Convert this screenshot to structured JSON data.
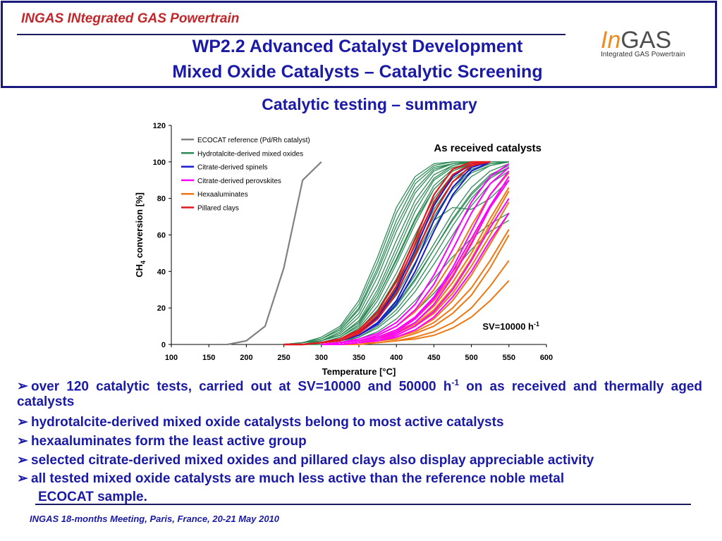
{
  "header": {
    "tag": "INGAS INtegrated GAS Powertrain",
    "title_line1": "WP2.2 Advanced Catalyst Development",
    "title_line2": "Mixed Oxide Catalysts – Catalytic Screening",
    "logo_in": "In",
    "logo_gas": "GAS",
    "logo_sub": "Integrated GAS Powertrain"
  },
  "subtitle": "Catalytic testing – summary",
  "bullets": [
    "over 120 catalytic tests, carried out at SV=10000 and 50000 h",
    "hydrotalcite-derived mixed oxide catalysts belong to most active catalysts",
    "hexaaluminates form the least active group",
    "selected citrate-derived mixed oxides and pillared clays also display appreciable activity",
    "all tested mixed oxide catalysts are much less active than the reference noble metal",
    "ECOCAT sample."
  ],
  "bullet1_sup": "-1",
  "bullet1_tail": " on as received and thermally aged catalysts",
  "footer": "INGAS 18-months Meeting, Paris, France, 20-21 May 2010",
  "colors": {
    "title_blue": "#1a1aa6",
    "header_red": "#c0282c",
    "ecocat": "#808080",
    "hydrotalcite": "#2e8b57",
    "spinels": "#1a1acd",
    "perovskites": "#ff00ff",
    "hexaaluminates": "#f07814",
    "pillared": "#e0191e"
  },
  "chart_data": {
    "type": "line",
    "xlabel": "Temperature [°C]",
    "ylabel_main": "CH",
    "ylabel_sub": "4",
    "ylabel_tail": " conversion [%]",
    "xlim": [
      100,
      600
    ],
    "ylim": [
      0,
      120
    ],
    "xticks": [
      "100",
      "150",
      "200",
      "250",
      "300",
      "350",
      "400",
      "450",
      "500",
      "550",
      "600"
    ],
    "yticks": [
      "0",
      "20",
      "40",
      "60",
      "80",
      "100",
      "120"
    ],
    "annotation": "As received catalysts",
    "sv_label": "SV=10000 h",
    "sv_sup": "-1",
    "legend": [
      {
        "name": "ECOCAT reference (Pd/Rh catalyst)",
        "color": "#808080"
      },
      {
        "name": "Hydrotalcite-derived mixed oxides",
        "color": "#2e8b57"
      },
      {
        "name": "Citrate-derived spinels",
        "color": "#1a1acd"
      },
      {
        "name": "Citrate-derived perovskites",
        "color": "#ff00ff"
      },
      {
        "name": "Hexaaluminates",
        "color": "#f07814"
      },
      {
        "name": "Pillared clays",
        "color": "#e0191e"
      }
    ],
    "series": [
      {
        "name": "ECOCAT reference (Pd/Rh catalyst)",
        "color": "#808080",
        "width": 2.2,
        "x": [
          175,
          200,
          225,
          250,
          275,
          300
        ],
        "y": [
          0,
          2,
          10,
          42,
          90,
          100
        ]
      },
      {
        "group": "Hydrotalcite-derived mixed oxides",
        "color": "#2e8b57",
        "width": 1.3,
        "x": [
          250,
          275,
          300,
          325,
          350,
          375,
          400,
          425,
          450,
          475,
          500,
          525,
          550
        ],
        "ys": [
          [
            0,
            1,
            3,
            9,
            22,
            45,
            72,
            90,
            98,
            100,
            100,
            100,
            100
          ],
          [
            0,
            1,
            3,
            8,
            20,
            42,
            68,
            88,
            97,
            99,
            100,
            100,
            100
          ],
          [
            0,
            1,
            4,
            10,
            24,
            48,
            75,
            92,
            99,
            100,
            100,
            100,
            100
          ],
          [
            0,
            1,
            2,
            7,
            17,
            37,
            62,
            83,
            95,
            99,
            100,
            100,
            100
          ],
          [
            0,
            1,
            2,
            6,
            15,
            33,
            57,
            79,
            93,
            98,
            100,
            100,
            100
          ],
          [
            0,
            1,
            3,
            8,
            19,
            40,
            65,
            85,
            96,
            99,
            100,
            100,
            100
          ],
          [
            0,
            0,
            2,
            5,
            12,
            28,
            50,
            73,
            90,
            97,
            99,
            100,
            100
          ],
          [
            0,
            0,
            2,
            5,
            13,
            30,
            53,
            76,
            91,
            98,
            100,
            100,
            100
          ],
          [
            0,
            0,
            1,
            4,
            10,
            24,
            44,
            66,
            85,
            95,
            99,
            100,
            100
          ],
          [
            0,
            0,
            1,
            4,
            11,
            26,
            47,
            69,
            87,
            96,
            99,
            100,
            100
          ],
          [
            0,
            0,
            1,
            3,
            9,
            21,
            39,
            60,
            80,
            93,
            98,
            100,
            100
          ],
          [
            0,
            0,
            1,
            3,
            8,
            18,
            34,
            54,
            74,
            89,
            96,
            99,
            100
          ],
          [
            0,
            0,
            1,
            3,
            8,
            19,
            36,
            57,
            77,
            91,
            97,
            100,
            100
          ],
          [
            0,
            0,
            1,
            2,
            6,
            14,
            27,
            45,
            64,
            81,
            92,
            98,
            100
          ],
          [
            0,
            0,
            1,
            2,
            5,
            12,
            23,
            38,
            55,
            72,
            86,
            95,
            99
          ],
          [
            0,
            0,
            1,
            3,
            7,
            16,
            31,
            50,
            70,
            86,
            95,
            99,
            100
          ],
          [
            0,
            0,
            1,
            2,
            4,
            10,
            19,
            32,
            48,
            65,
            80,
            91,
            97
          ],
          [
            0,
            0,
            1,
            2,
            5,
            11,
            21,
            35,
            52,
            69,
            83,
            93,
            98
          ],
          [
            0,
            0,
            0,
            1,
            4,
            9,
            17,
            29,
            44,
            60,
            76,
            88,
            95
          ],
          [
            0,
            0,
            1,
            2,
            6,
            15,
            29,
            48,
            68,
            75,
            74,
            80,
            90
          ],
          [
            0,
            0,
            0,
            1,
            3,
            7,
            14,
            24,
            36,
            48,
            58,
            66,
            72
          ],
          [
            0,
            0,
            0,
            1,
            2,
            5,
            10,
            18,
            28,
            40,
            52,
            62,
            68
          ],
          [
            0,
            0,
            1,
            2,
            5,
            12,
            22,
            36,
            52,
            68,
            82,
            92,
            97
          ],
          [
            0,
            0,
            1,
            3,
            8,
            17,
            32,
            51,
            70,
            85,
            94,
            98,
            100
          ],
          [
            0,
            1,
            2,
            5,
            12,
            26,
            46,
            68,
            85,
            95,
            99,
            100,
            100
          ]
        ]
      },
      {
        "group": "Citrate-derived spinels",
        "color": "#1a1acd",
        "width": 2,
        "x": [
          250,
          275,
          300,
          325,
          350,
          375,
          400,
          425,
          450,
          475,
          500,
          525
        ],
        "ys": [
          [
            0,
            0,
            1,
            3,
            7,
            15,
            30,
            52,
            76,
            92,
            99,
            100
          ],
          [
            0,
            0,
            1,
            2,
            5,
            11,
            22,
            40,
            62,
            82,
            95,
            100
          ],
          [
            0,
            0,
            1,
            2,
            5,
            12,
            24,
            44,
            68,
            86,
            97,
            100
          ]
        ]
      },
      {
        "group": "Citrate-derived perovskites",
        "color": "#ff00ff",
        "width": 2,
        "x": [
          300,
          325,
          350,
          375,
          400,
          425,
          450,
          475,
          500,
          525,
          550
        ],
        "ys": [
          [
            0,
            1,
            2,
            4,
            8,
            15,
            26,
            42,
            62,
            82,
            95
          ],
          [
            0,
            1,
            2,
            5,
            10,
            19,
            33,
            52,
            72,
            88,
            97
          ],
          [
            0,
            0,
            1,
            3,
            6,
            12,
            22,
            37,
            55,
            75,
            90
          ],
          [
            0,
            0,
            1,
            3,
            7,
            14,
            25,
            40,
            58,
            76,
            92
          ],
          [
            0,
            0,
            1,
            2,
            5,
            10,
            18,
            30,
            46,
            64,
            80
          ],
          [
            0,
            0,
            1,
            2,
            4,
            8,
            15,
            26,
            40,
            57,
            72
          ],
          [
            0,
            1,
            3,
            6,
            12,
            22,
            38,
            58,
            78,
            92,
            99
          ]
        ]
      },
      {
        "group": "Hexaaluminates",
        "color": "#f07814",
        "width": 2,
        "x": [
          300,
          325,
          350,
          375,
          400,
          425,
          450,
          475,
          500,
          525,
          550
        ],
        "ys": [
          [
            0,
            0,
            1,
            2,
            3,
            6,
            10,
            17,
            27,
            42,
            60
          ],
          [
            0,
            0,
            1,
            1,
            2,
            4,
            7,
            12,
            20,
            32,
            46
          ],
          [
            0,
            0,
            0,
            1,
            2,
            3,
            5,
            9,
            15,
            24,
            35
          ],
          [
            0,
            0,
            1,
            2,
            4,
            7,
            12,
            20,
            31,
            46,
            63
          ],
          [
            0,
            0,
            1,
            2,
            4,
            8,
            14,
            24,
            38,
            55,
            72
          ],
          [
            0,
            0,
            1,
            3,
            5,
            10,
            17,
            28,
            43,
            60,
            78
          ],
          [
            0,
            1,
            2,
            3,
            6,
            11,
            19,
            31,
            47,
            66,
            84
          ],
          [
            0,
            1,
            2,
            4,
            8,
            14,
            24,
            38,
            56,
            75,
            90
          ],
          [
            0,
            1,
            2,
            5,
            10,
            18,
            30,
            46,
            65,
            82,
            94
          ],
          [
            0,
            1,
            2,
            4,
            7,
            12,
            21,
            34,
            50,
            69,
            86
          ]
        ]
      },
      {
        "group": "Pillared clays",
        "color": "#e0191e",
        "width": 2.2,
        "x": [
          250,
          275,
          300,
          325,
          350,
          375,
          400,
          425,
          450,
          475,
          500,
          525
        ],
        "ys": [
          [
            0,
            0,
            1,
            3,
            8,
            18,
            35,
            58,
            82,
            96,
            100,
            100
          ],
          [
            0,
            0,
            1,
            2,
            6,
            14,
            28,
            49,
            72,
            89,
            98,
            100
          ],
          [
            0,
            0,
            1,
            3,
            7,
            16,
            32,
            55,
            78,
            93,
            99,
            100
          ]
        ]
      }
    ]
  }
}
